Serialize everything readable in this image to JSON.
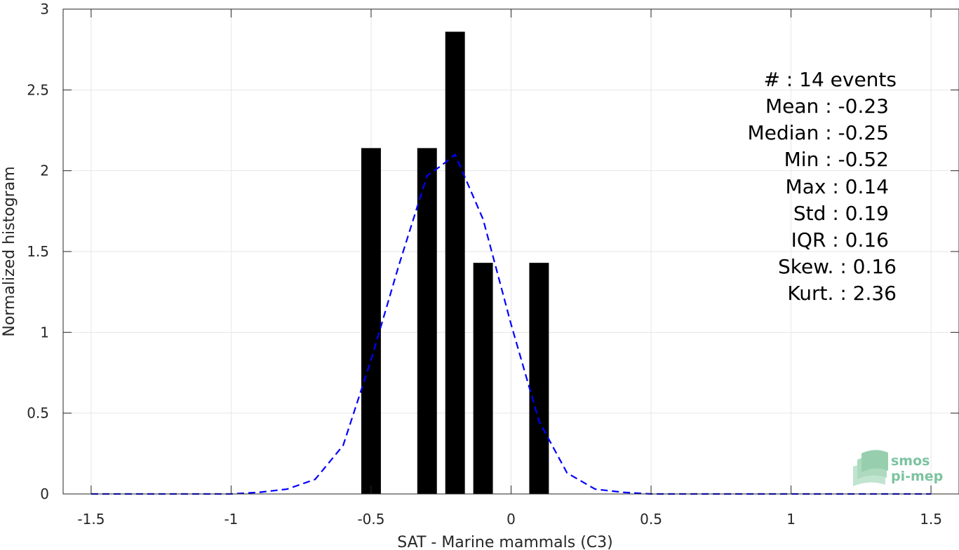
{
  "chart_data": {
    "type": "bar",
    "xlabel": "SAT - Marine mammals (C3)",
    "ylabel": "Normalized histogram",
    "xlim": [
      -1.6,
      1.6
    ],
    "ylim": [
      0,
      3
    ],
    "xticks": [
      -1.5,
      -1,
      -0.5,
      0,
      0.5,
      1,
      1.5
    ],
    "xtick_labels": [
      "-1.5",
      "-1",
      "-0.5",
      "0",
      "0.5",
      "1",
      "1.5"
    ],
    "yticks": [
      0,
      0.5,
      1,
      1.5,
      2,
      2.5,
      3
    ],
    "ytick_labels": [
      "0",
      "0.5",
      "1",
      "1.5",
      "2",
      "2.5",
      "3"
    ],
    "grid": true,
    "bars": {
      "color": "#000000",
      "width": 0.07,
      "centers": [
        -0.5,
        -0.3,
        -0.2,
        -0.1,
        0.1
      ],
      "values": [
        2.14,
        2.14,
        2.86,
        1.43,
        1.43
      ]
    },
    "fit_curve": {
      "color": "#0000ff",
      "style": "dashed",
      "x": [
        -1.5,
        -1.4,
        -1.3,
        -1.2,
        -1.1,
        -1.0,
        -0.9,
        -0.8,
        -0.7,
        -0.6,
        -0.5,
        -0.4,
        -0.3,
        -0.25,
        -0.2,
        -0.1,
        0.0,
        0.1,
        0.2,
        0.3,
        0.4,
        0.5,
        0.6,
        0.7,
        0.8,
        0.9,
        1.0,
        1.1,
        1.2,
        1.3,
        1.4,
        1.5
      ],
      "y": [
        0,
        0,
        0,
        0,
        0,
        0,
        0.01,
        0.03,
        0.09,
        0.3,
        0.83,
        1.42,
        1.97,
        2.03,
        2.1,
        1.7,
        1.05,
        0.45,
        0.13,
        0.03,
        0.01,
        0,
        0,
        0,
        0,
        0,
        0,
        0,
        0,
        0,
        0,
        0
      ]
    },
    "stats_lines": [
      "#  : 14 events",
      "Mean : -0.23",
      "Median : -0.25",
      "Min : -0.52",
      "Max : 0.14",
      "Std : 0.19",
      "IQR : 0.16",
      "Skew. : 0.16",
      "Kurt. : 2.36"
    ]
  },
  "logo": {
    "line1": "smos",
    "line2": "pi-mep",
    "color": "#7cc3a0"
  }
}
